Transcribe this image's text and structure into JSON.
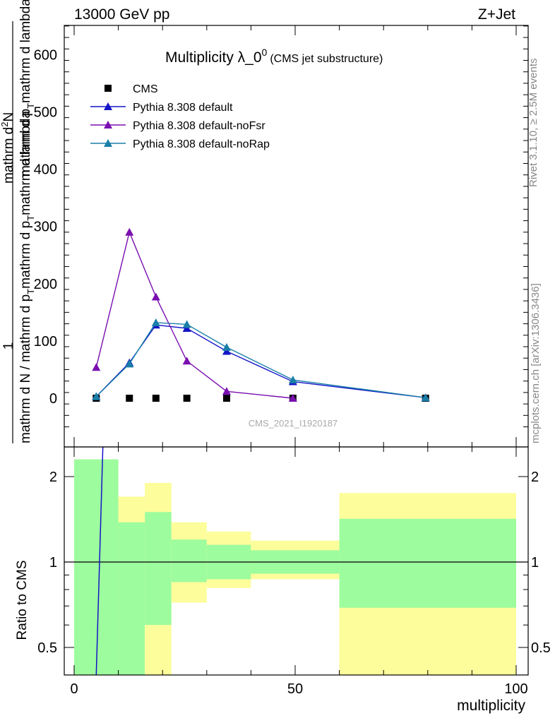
{
  "header": {
    "energy": "13000 GeV pp",
    "process": "Z+Jet",
    "plot_title": "Multiplicity λ_0",
    "plot_title_sup": "0",
    "plot_title_note": "(CMS jet substructure)",
    "rivet_label": "Rivet 3.1.10, ≥ 2.5M events",
    "mcplots_label": "mcplots.cern.ch [arXiv:1306.3436]",
    "watermark": "CMS_2021_I1920187"
  },
  "axes": {
    "main_ylabel_parts": [
      "1",
      "mathrm d N / mathrm d p",
      "T",
      "mathrm d p",
      "T",
      "mathrm d lambda",
      "mathrm d",
      "2",
      "N",
      "mathrm d p",
      "T",
      "mathrm d p",
      "T",
      "mathrm d lambda"
    ],
    "main_ylabel_num": "mathrm d²N",
    "main_ylabel_den": "mathrm d p_T mathrm d lambda",
    "ratio_ylabel": "Ratio to CMS",
    "xlabel": "multiplicity",
    "main_yticks": [
      "0",
      "100",
      "200",
      "300",
      "400",
      "500",
      "600"
    ],
    "ratio_yticks": [
      "0.5",
      "1",
      "2"
    ],
    "xticks": [
      "0",
      "50",
      "100"
    ]
  },
  "colors": {
    "cms": "#000000",
    "default": "#1515c8",
    "noFsr": "#7a0fb0",
    "noRap": "#1a7fa8",
    "band_inner": "#9dfc9d",
    "band_outer": "#fdfd9b"
  },
  "chart_data": {
    "type": "line",
    "xlabel": "multiplicity",
    "ylabel": "1 / (mathrm d N / mathrm d p_T) · mathrm d²N / (mathrm d p_T mathrm d lambda)",
    "xlim": [
      -2,
      100
    ],
    "ylim": [
      -75,
      660
    ],
    "ratio_ylim": [
      0.35,
      2.3
    ],
    "series": [
      {
        "name": "CMS",
        "marker": "square",
        "x": [
          5,
          12.5,
          18.5,
          25.5,
          34.5,
          49.5,
          79.5
        ],
        "y": [
          0,
          0,
          0,
          0,
          0,
          0,
          0
        ]
      },
      {
        "name": "Pythia 8.308 default",
        "marker": "triangle",
        "x": [
          5,
          12.5,
          18.5,
          25.5,
          34.5,
          49.5,
          79.5
        ],
        "y": [
          3,
          62,
          128,
          122,
          82,
          29,
          1
        ]
      },
      {
        "name": "Pythia 8.308 default-noFsr",
        "marker": "triangle",
        "x": [
          5,
          12.5,
          18.5,
          25.5,
          34.5,
          49.5
        ],
        "y": [
          54,
          290,
          177,
          65,
          12,
          0
        ]
      },
      {
        "name": "Pythia 8.308 default-noRap",
        "marker": "triangle",
        "x": [
          5,
          12.5,
          18.5,
          25.5,
          34.5,
          49.5,
          79.5
        ],
        "y": [
          3,
          60,
          132,
          129,
          89,
          32,
          1
        ]
      }
    ],
    "ratio_bands": [
      {
        "xlo": 0,
        "xhi": 10,
        "inner": [
          0.35,
          2.3
        ],
        "outer": [
          0.35,
          2.3
        ]
      },
      {
        "xlo": 10,
        "xhi": 16,
        "inner": [
          0.35,
          1.38
        ],
        "outer": [
          0.35,
          1.7
        ]
      },
      {
        "xlo": 16,
        "xhi": 22,
        "inner": [
          0.6,
          1.5
        ],
        "outer": [
          0.35,
          1.9
        ]
      },
      {
        "xlo": 22,
        "xhi": 30,
        "inner": [
          0.85,
          1.2
        ],
        "outer": [
          0.72,
          1.38
        ]
      },
      {
        "xlo": 30,
        "xhi": 40,
        "inner": [
          0.87,
          1.15
        ],
        "outer": [
          0.81,
          1.28
        ]
      },
      {
        "xlo": 40,
        "xhi": 60,
        "inner": [
          0.91,
          1.1
        ],
        "outer": [
          0.87,
          1.19
        ]
      },
      {
        "xlo": 60,
        "xhi": 100,
        "inner": [
          0.69,
          1.42
        ],
        "outer": [
          0.35,
          1.75
        ]
      }
    ],
    "ratio_curve": {
      "name": "Pythia 8.308 default",
      "x": [
        5,
        6.5
      ],
      "y": [
        0.35,
        2.3
      ]
    },
    "grid": false,
    "legend_position": "top-left"
  }
}
